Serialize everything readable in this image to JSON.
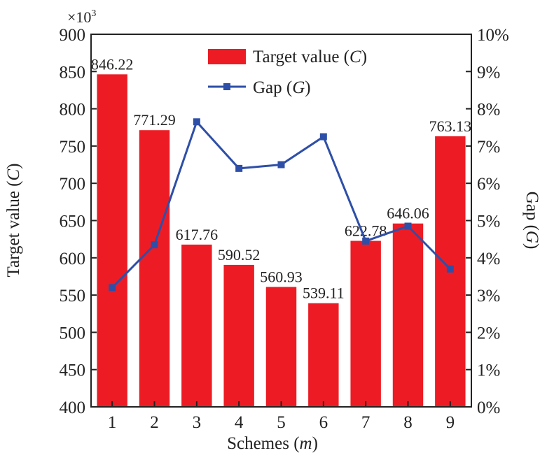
{
  "chart_data": {
    "type": "bar",
    "categories": [
      "1",
      "2",
      "3",
      "4",
      "5",
      "6",
      "7",
      "8",
      "9"
    ],
    "series": [
      {
        "name": "Target value (C)",
        "name_main": "Target value (",
        "name_var": "C",
        "name_end": ")",
        "kind": "bar",
        "axis": "left",
        "values": [
          846.22,
          771.29,
          617.76,
          590.52,
          560.93,
          539.11,
          622.78,
          646.06,
          763.13
        ],
        "data_labels": [
          "846.22",
          "771.29",
          "617.76",
          "590.52",
          "560.93",
          "539.11",
          "622.78",
          "646.06",
          "763.13"
        ],
        "color": "#ed1c24"
      },
      {
        "name": "Gap (G)",
        "name_main": "Gap (",
        "name_var": "G",
        "name_end": ")",
        "kind": "line",
        "axis": "right",
        "unit": "%",
        "values": [
          3.2,
          4.35,
          7.65,
          6.4,
          6.5,
          7.25,
          4.45,
          4.85,
          3.7
        ],
        "color": "#2e4fa8"
      }
    ],
    "xlabel": "Schemes (m)",
    "xlabel_main": "Schemes (",
    "xlabel_var": "m",
    "xlabel_end": ")",
    "ylabel": "Target value (C)",
    "ylabel_main": "Target value (",
    "ylabel_var": "C",
    "ylabel_end": ")",
    "y2label": "Gap (G)",
    "y2label_main": "Gap (",
    "y2label_var": "G",
    "y2label_end": ")",
    "ylim": [
      400,
      900
    ],
    "y_ticks": [
      400,
      450,
      500,
      550,
      600,
      650,
      700,
      750,
      800,
      850,
      900
    ],
    "y2lim": [
      0,
      10
    ],
    "y2_ticks": [
      "0%",
      "1%",
      "2%",
      "3%",
      "4%",
      "5%",
      "6%",
      "7%",
      "8%",
      "9%",
      "10%"
    ],
    "multiplier_base": "×10",
    "multiplier_exp": "3",
    "legend_position": "top-center",
    "grid": false
  }
}
